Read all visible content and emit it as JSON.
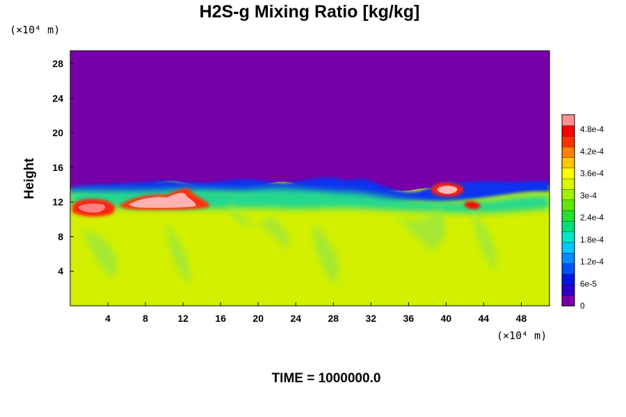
{
  "chart_data": {
    "type": "heatmap",
    "title": "H2S-g Mixing Ratio [kg/kg]",
    "ylabel": "Height",
    "x_unit": "(×10⁴ m)",
    "y_unit": "(×10⁴ m)",
    "xlim": [
      0,
      51
    ],
    "ylim": [
      0,
      29.5
    ],
    "x_ticks": [
      4,
      8,
      12,
      16,
      20,
      24,
      28,
      32,
      36,
      40,
      44,
      48
    ],
    "y_ticks": [
      4,
      8,
      12,
      16,
      20,
      24,
      28
    ],
    "x_tick_labels": [
      "4",
      "8",
      "12",
      "16",
      "20",
      "24",
      "28",
      "32",
      "36",
      "40",
      "44",
      "48"
    ],
    "y_tick_labels": [
      "4",
      "8",
      "12",
      "16",
      "20",
      "24",
      "28"
    ],
    "colorbar": {
      "range": [
        0,
        0.00052
      ],
      "tick_values": [
        0,
        6e-05,
        0.00012,
        0.00018,
        0.00024,
        0.0003,
        0.00036,
        0.00042,
        0.00048
      ],
      "tick_labels": [
        "0",
        "6e-5",
        "1.2e-4",
        "1.8e-4",
        "2.4e-4",
        "3e-4",
        "3.6e-4",
        "4.2e-4",
        "4.8e-4"
      ],
      "colors": [
        "#7800a8",
        "#2a00c8",
        "#0016e6",
        "#0050ff",
        "#008cff",
        "#00c8ff",
        "#00e8c8",
        "#00e078",
        "#20e030",
        "#60e800",
        "#a0f000",
        "#d8f800",
        "#ffff00",
        "#ffc800",
        "#ff8000",
        "#ff3000",
        "#ff0000",
        "#ff9090"
      ]
    },
    "field_description_values": {
      "lower_layer_value": 0.00034,
      "upper_layer_value": 0,
      "interface_height": 14,
      "high_value_patches": [
        {
          "x": 2.5,
          "y": 11.5,
          "value": 0.0005
        },
        {
          "x": 10,
          "y": 11.8,
          "value": 0.0005
        },
        {
          "x": 40.5,
          "y": 13.8,
          "value": 0.0005
        },
        {
          "x": 43,
          "y": 11.4,
          "value": 0.00046
        }
      ]
    },
    "grid": false,
    "legend": "right"
  },
  "footer": {
    "time_label": "TIME = 1000000.0"
  }
}
